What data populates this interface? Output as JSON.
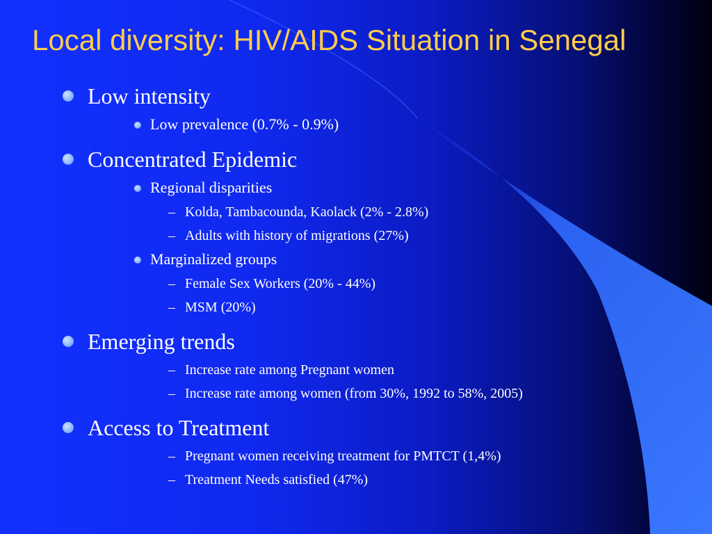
{
  "slide": {
    "title": "Local diversity: HIV/AIDS Situation in Senegal",
    "outline": [
      {
        "text": "Low intensity"
      },
      {
        "text": "Low prevalence (0.7% - 0.9%)"
      },
      {
        "text": "Concentrated Epidemic"
      },
      {
        "text": "Regional disparities"
      },
      {
        "text": "Kolda, Tambacounda, Kaolack (2% - 2.8%)"
      },
      {
        "text": "Adults with history of migrations (27%)"
      },
      {
        "text": "Marginalized groups"
      },
      {
        "text": "Female Sex Workers (20% - 44%)"
      },
      {
        "text": "MSM (20%)"
      },
      {
        "text": "Emerging trends"
      },
      {
        "text": "Increase rate among Pregnant women"
      },
      {
        "text": "Increase rate among women (from 30%, 1992 to 58%, 2005)"
      },
      {
        "text": "Access to Treatment"
      },
      {
        "text": "Pregnant women receiving treatment for PMTCT (1,4%)"
      },
      {
        "text": "Treatment Needs satisfied (47%)"
      }
    ],
    "bullet_glyphs": {
      "level3": "–"
    }
  },
  "colors": {
    "title": "#ffcc4d",
    "body_text": "#ffffff",
    "bullet": "#8db9ff",
    "background_left": "#1230ff",
    "background_right": "#000010",
    "swoosh": "#2f6bff"
  },
  "icons": {
    "level1_bullet": "round-bullet-icon",
    "level2_bullet": "small-round-bullet-icon",
    "level3_bullet": "dash-bullet-icon"
  }
}
